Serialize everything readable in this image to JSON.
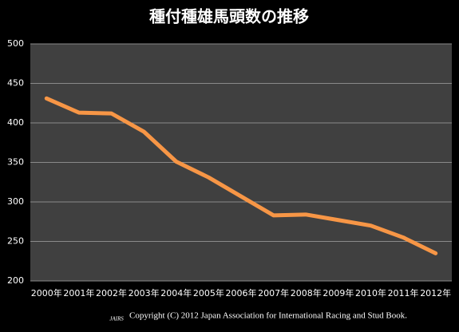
{
  "chart_data": {
    "type": "line",
    "title": "種付種雄馬頭数の推移",
    "categories": [
      "2000年",
      "2001年",
      "2002年",
      "2003年",
      "2004年",
      "2005年",
      "2006年",
      "2007年",
      "2008年",
      "2009年",
      "2010年",
      "2011年",
      "2012年"
    ],
    "series": [
      {
        "name": "種付種雄馬頭数",
        "color": "#f79646",
        "values": [
          431,
          413,
          412,
          389,
          351,
          331,
          307,
          283,
          284,
          277,
          270,
          255,
          235
        ]
      }
    ],
    "ylim": [
      200,
      500
    ],
    "yticks": [
      200,
      250,
      300,
      350,
      400,
      450,
      500
    ],
    "grid": true,
    "logo": "JAIRS",
    "copyright": "Copyright (C) 2012 Japan Association for International Racing and Stud Book."
  }
}
